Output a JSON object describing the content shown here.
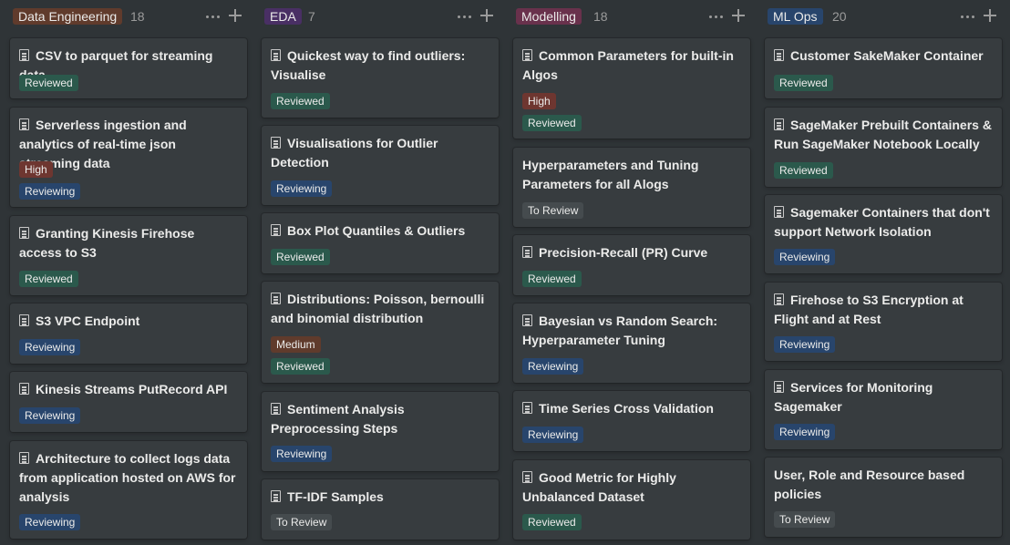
{
  "colors": {
    "background": "#2f3437",
    "card": "#373c3f",
    "tag_reviewed": "#2b594c",
    "tag_reviewing": "#28456c",
    "tag_high": "#6e3630",
    "tag_medium": "#603b2c",
    "tag_to_review": "#454b4e",
    "col_data_engineering": "#603b2c",
    "col_eda": "#492f64",
    "col_modelling": "#69314c",
    "col_ml_ops": "#28456c"
  },
  "icons": {
    "card": "page-icon",
    "more": "more-icon",
    "add": "plus-icon"
  },
  "columns": [
    {
      "name": "Data Engineering",
      "count": "18",
      "cards": [
        {
          "title": "CSV to parquet for streaming data",
          "tags": [
            "Reviewed"
          ]
        },
        {
          "title": "Serverless ingestion and analytics of real-time json streaming data",
          "tags": [
            "High",
            "Reviewing"
          ]
        },
        {
          "title": "Granting Kinesis Firehose access to S3",
          "tags": [
            "Reviewed"
          ]
        },
        {
          "title": "S3 VPC Endpoint",
          "tags": [
            "Reviewing"
          ]
        },
        {
          "title": "Kinesis Streams PutRecord API",
          "tags": [
            "Reviewing"
          ]
        },
        {
          "title": "Architecture to collect logs data from application hosted on AWS for analysis",
          "tags": [
            "Reviewing"
          ]
        }
      ]
    },
    {
      "name": "EDA",
      "count": "7",
      "cards": [
        {
          "title": "Quickest way to find outliers: Visualise",
          "tags": [
            "Reviewed"
          ]
        },
        {
          "title": "Visualisations for Outlier Detection",
          "tags": [
            "Reviewing"
          ]
        },
        {
          "title": "Box Plot Quantiles & Outliers",
          "tags": [
            "Reviewed"
          ]
        },
        {
          "title": "Distributions: Poisson, bernoulli and binomial distribution",
          "tags": [
            "Medium",
            "Reviewed"
          ]
        },
        {
          "title": "Sentiment Analysis Preprocessing Steps",
          "tags": [
            "Reviewing"
          ]
        },
        {
          "title": "TF-IDF Samples",
          "tags": [
            "To Review"
          ]
        }
      ]
    },
    {
      "name": "Modelling",
      "count": "18",
      "cards": [
        {
          "title": "Common Parameters for built-in Algos",
          "tags": [
            "High",
            "Reviewed"
          ]
        },
        {
          "title": "Hyperparameters and Tuning Parameters for all Alogs",
          "tags": [
            "To Review"
          ],
          "noicon": true
        },
        {
          "title": "Precision-Recall (PR) Curve",
          "tags": [
            "Reviewed"
          ]
        },
        {
          "title": "Bayesian vs Random Search: Hyperparameter Tuning",
          "tags": [
            "Reviewing"
          ]
        },
        {
          "title": "Time Series Cross Validation",
          "tags": [
            "Reviewing"
          ]
        },
        {
          "title": "Good Metric for Highly Unbalanced Dataset",
          "tags": [
            "Reviewed"
          ]
        }
      ]
    },
    {
      "name": "ML Ops",
      "count": "20",
      "cards": [
        {
          "title": "Customer SakeMaker Container",
          "tags": [
            "Reviewed"
          ]
        },
        {
          "title": "SageMaker Prebuilt Containers & Run SageMaker Notebook Locally",
          "tags": [
            "Reviewed"
          ]
        },
        {
          "title": "Sagemaker Containers that don't support Network Isolation",
          "tags": [
            "Reviewing"
          ]
        },
        {
          "title": "Firehose to S3 Encryption at Flight and at Rest",
          "tags": [
            "Reviewing"
          ]
        },
        {
          "title": "Services for Monitoring Sagemaker",
          "tags": [
            "Reviewing"
          ]
        },
        {
          "title": "User, Role and Resource based policies",
          "tags": [
            "To Review"
          ],
          "noicon": true
        }
      ]
    }
  ]
}
